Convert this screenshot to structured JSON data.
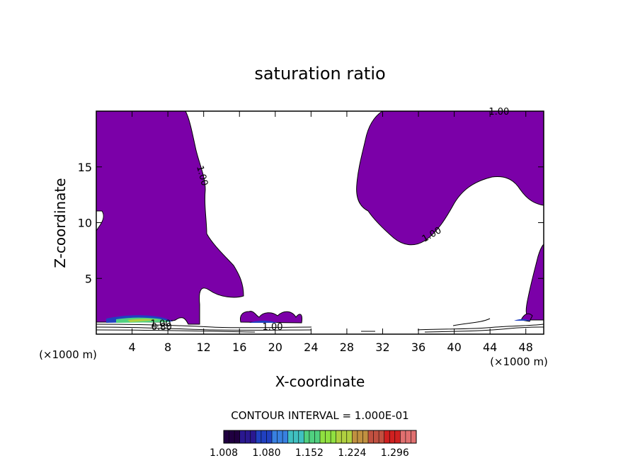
{
  "chart_data": {
    "type": "contour",
    "title": "saturation ratio",
    "xlabel": "X-coordinate",
    "ylabel": "Z-coordinate",
    "x_unit_left": "(×1000 m)",
    "x_unit_right": "(×1000 m)",
    "xlim": [
      0,
      50
    ],
    "ylim": [
      0,
      20
    ],
    "x_ticks": [
      4,
      8,
      12,
      16,
      20,
      24,
      28,
      32,
      36,
      40,
      44,
      48
    ],
    "y_ticks": [
      5,
      10,
      15
    ],
    "contour_labels": [
      {
        "text": "1.00",
        "x": 45,
        "y": 19.9,
        "angle": 0
      },
      {
        "text": "1.00",
        "x": 11.8,
        "y": 14.2,
        "angle": 75
      },
      {
        "text": "1.00",
        "x": 37.5,
        "y": 8.9,
        "angle": -30
      },
      {
        "text": "1.00",
        "x": 7.2,
        "y": 0.9,
        "angle": 0
      },
      {
        "text": "1.00",
        "x": 19.7,
        "y": 0.6,
        "angle": 0
      },
      {
        "text": "0.80",
        "x": 7.3,
        "y": 0.6,
        "angle": 0
      }
    ],
    "supersaturated_fill_color": "#7b00a8",
    "contour_interval_text": "CONTOUR INTERVAL = 1.000E-01",
    "colorbar": {
      "tick_labels": [
        "1.008",
        "1.080",
        "1.152",
        "1.224",
        "1.296"
      ],
      "min": 1.008,
      "max": 1.332,
      "colors": [
        "#200040",
        "#2a1890",
        "#2040c0",
        "#3880e0",
        "#40c0c0",
        "#50d080",
        "#90e040",
        "#b0d040",
        "#c09040",
        "#c05040",
        "#d02020",
        "#e07070"
      ]
    }
  }
}
